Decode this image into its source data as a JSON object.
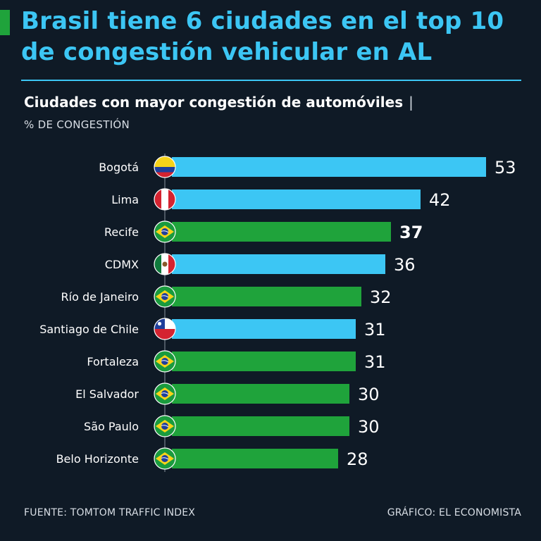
{
  "header": {
    "title": "Brasil tiene 6 ciudades en el top 10 de congestión vehicular en AL",
    "subtitle": "Ciudades con mayor congestión de automóviles",
    "subtitle_separator": "|",
    "unit_label": "% DE CONGESTIÓN"
  },
  "footer": {
    "source": "FUENTE: TOMTOM TRAFFIC INDEX",
    "credit": "GRÁFICO: EL ECONOMISTA"
  },
  "colors": {
    "background": "#0f1a26",
    "title": "#3cc6f4",
    "brazil_bar": "#1fa33b",
    "other_bar": "#3cc6f4",
    "accent": "#1fa33b"
  },
  "chart_data": {
    "type": "bar",
    "orientation": "horizontal",
    "title": "Ciudades con mayor congestión de automóviles",
    "xlabel": "% DE CONGESTIÓN",
    "ylabel": "",
    "xlim": [
      0,
      53
    ],
    "grid": false,
    "categories": [
      "Bogotá",
      "Lima",
      "Recife",
      "CDMX",
      "Río de Janeiro",
      "Santiago de Chile",
      "Fortaleza",
      "El Salvador",
      "São Paulo",
      "Belo Horizonte"
    ],
    "values": [
      53,
      42,
      37,
      36,
      32,
      31,
      31,
      30,
      30,
      28
    ],
    "flags": [
      "colombia-flag-icon",
      "peru-flag-icon",
      "brazil-flag-icon",
      "mexico-flag-icon",
      "brazil-flag-icon",
      "chile-flag-icon",
      "brazil-flag-icon",
      "brazil-flag-icon",
      "brazil-flag-icon",
      "brazil-flag-icon"
    ],
    "is_brazil": [
      false,
      false,
      true,
      false,
      true,
      false,
      true,
      true,
      true,
      true
    ],
    "highlighted_value_index": 2
  }
}
